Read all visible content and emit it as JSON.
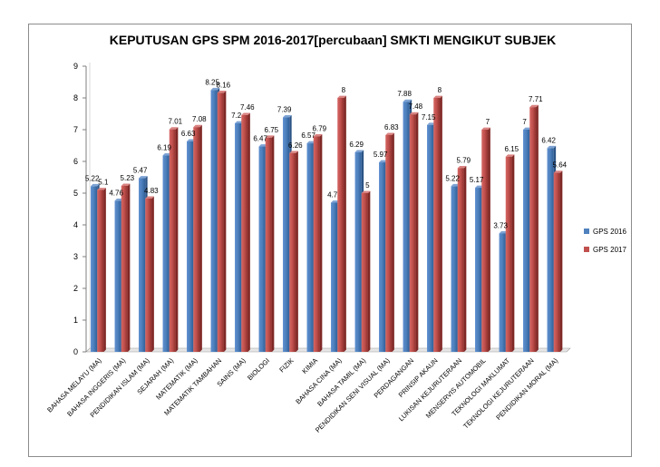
{
  "chart_data": {
    "type": "bar",
    "title": "KEPUTUSAN GPS SPM 2016-2017[percubaan] SMKTI MENGIKUT SUBJEK",
    "xlabel": "",
    "ylabel": "",
    "ylim": [
      0,
      9
    ],
    "yticks": [
      0,
      1,
      2,
      3,
      4,
      5,
      6,
      7,
      8,
      9
    ],
    "grid": false,
    "legend_position": "right",
    "categories": [
      "BAHASA MELAYU (MA)",
      "BAHASA INGGERIS (MA)",
      "PENDIDIKAN ISLAM (MA)",
      "SEJARAH (MA)",
      "MATEMATIK (MA)",
      "MATEMATIK TAMBAHAN",
      "SAINS (MA)",
      "BIOLOGI",
      "FIZIK",
      "KIMIA",
      "BAHASA CINA (MA)",
      "BAHASA TAMIL (MA)",
      "PENDIDIKAN SENI VISUAL (MA)",
      "PERDAGANGAN",
      "PRINSIP AKAUN",
      "LUKISAN KEJURUTERAAN",
      "MENSERVIS AUTOMOBIL",
      "TEKNOLOGI MAKLUMAT",
      "TEKNOLOGI KEJURUTERAAN",
      "PENDIDIKAN MORAL (MA)"
    ],
    "series": [
      {
        "name": "GPS 2016",
        "color": "#4f81bd",
        "values": [
          5.22,
          4.76,
          5.47,
          6.19,
          6.63,
          8.25,
          7.2,
          6.47,
          7.39,
          6.57,
          4.7,
          6.29,
          5.97,
          7.88,
          7.15,
          5.22,
          5.17,
          3.73,
          7,
          6.42
        ],
        "labels": [
          "5.22",
          "4.76",
          "5.47",
          "6.19",
          "6.63",
          "8.25",
          "7.2",
          "6.47",
          "7.39",
          "6.57",
          "4.7",
          "6.29",
          "5.97",
          "7.88",
          "7.15",
          "5.22",
          "5.17",
          "3.73",
          "7",
          "6.42"
        ]
      },
      {
        "name": "GPS 2017",
        "color": "#c0504d",
        "values": [
          5.1,
          5.23,
          4.83,
          7.01,
          7.08,
          8.16,
          7.46,
          6.75,
          6.26,
          6.79,
          8,
          5,
          6.83,
          7.48,
          8,
          5.79,
          7,
          6.15,
          7.71,
          5.64
        ],
        "labels": [
          "5.1",
          "5.23",
          "4.83",
          "7.01",
          "7.08",
          "8.16",
          "7.46",
          "6.75",
          "6.26",
          "6.79",
          "8",
          "5",
          "6.83",
          "7.48",
          "8",
          "5.79",
          "7",
          "6.15",
          "7.71",
          "5.64"
        ]
      }
    ]
  }
}
